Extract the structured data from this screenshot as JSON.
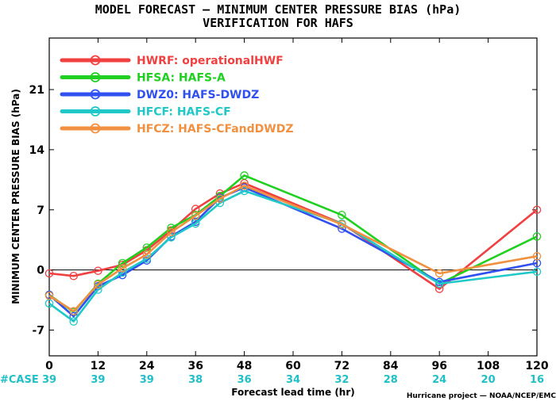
{
  "chart_data": {
    "type": "line",
    "title": "MODEL FORECAST — MINIMUM CENTER PRESSURE BIAS (hPa)",
    "subtitle": "VERIFICATION FOR HAFS",
    "xlabel": "Forecast lead time (hr)",
    "ylabel": "MINIMUM CENTER PRESSURE BIAS (hPa)",
    "xlim": [
      0,
      120
    ],
    "ylim": [
      -10,
      27
    ],
    "x_ticks": [
      0,
      12,
      24,
      36,
      48,
      60,
      72,
      84,
      96,
      108,
      120
    ],
    "y_ticks": [
      -7,
      0,
      7,
      14,
      21
    ],
    "zero_line": true,
    "legend_position": "top-left",
    "case_label": "#CASE",
    "case_x": [
      0,
      12,
      24,
      36,
      48,
      60,
      72,
      84,
      96,
      108,
      120
    ],
    "case_counts": [
      "39",
      "39",
      "39",
      "38",
      "36",
      "34",
      "32",
      "28",
      "24",
      "20",
      "16"
    ],
    "case_color": "#20c0c8",
    "credit": "Hurricane project — NOAA/NCEP/EMC",
    "series": [
      {
        "name": "HWRF: operationalHWF",
        "color": "#f04040",
        "x": [
          0,
          6,
          12,
          18,
          24,
          30,
          36,
          42,
          48,
          72,
          96,
          120
        ],
        "y": [
          -0.4,
          -0.7,
          -0.1,
          0.6,
          2.3,
          4.6,
          7.1,
          8.9,
          10.1,
          5.4,
          -2.2,
          7.0
        ]
      },
      {
        "name": "HFSA: HAFS-A",
        "color": "#20d020",
        "x": [
          0,
          6,
          12,
          18,
          24,
          30,
          36,
          42,
          48,
          72,
          96,
          120
        ],
        "y": [
          -2.9,
          -4.9,
          -1.6,
          0.8,
          2.6,
          4.9,
          6.4,
          8.6,
          11.0,
          6.4,
          -1.6,
          3.9
        ]
      },
      {
        "name": "DWZ0: HAFS-DWDZ",
        "color": "#3050f0",
        "x": [
          0,
          6,
          12,
          18,
          24,
          30,
          36,
          42,
          48,
          72,
          96,
          120
        ],
        "y": [
          -2.9,
          -5.4,
          -1.9,
          -0.6,
          1.1,
          3.9,
          5.6,
          8.4,
          9.6,
          4.8,
          -1.4,
          0.8
        ]
      },
      {
        "name": "HFCF: HAFS-CF",
        "color": "#20c8c8",
        "x": [
          0,
          6,
          12,
          18,
          24,
          30,
          36,
          42,
          48,
          72,
          96,
          120
        ],
        "y": [
          -3.9,
          -6.0,
          -2.3,
          -0.3,
          1.3,
          3.8,
          5.4,
          7.8,
          9.2,
          5.4,
          -1.6,
          -0.2
        ]
      },
      {
        "name": "HFCZ: HAFS-CFandDWDZ",
        "color": "#f09040",
        "x": [
          0,
          6,
          12,
          18,
          24,
          30,
          36,
          42,
          48,
          72,
          96,
          120
        ],
        "y": [
          -3.0,
          -4.8,
          -1.7,
          0.2,
          1.8,
          4.4,
          6.3,
          8.3,
          9.8,
          5.3,
          -0.4,
          1.6
        ]
      }
    ]
  }
}
